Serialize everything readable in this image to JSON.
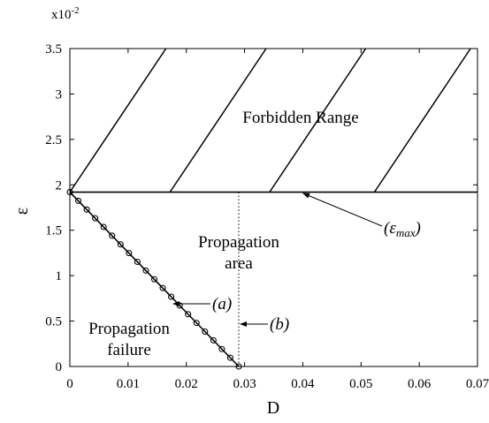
{
  "chart_data": {
    "type": "line",
    "xlabel": "D",
    "ylabel": "ε",
    "y_multiplier_label": "x10",
    "y_multiplier_exponent": "-2",
    "xlim": [
      0,
      0.07
    ],
    "ylim": [
      0,
      3.5
    ],
    "x_ticks": [
      {
        "value": 0,
        "label": "0"
      },
      {
        "value": 0.01,
        "label": "0.01"
      },
      {
        "value": 0.02,
        "label": "0.02"
      },
      {
        "value": 0.03,
        "label": "0.03"
      },
      {
        "value": 0.04,
        "label": "0.04"
      },
      {
        "value": 0.05,
        "label": "0.05"
      },
      {
        "value": 0.06,
        "label": "0.06"
      },
      {
        "value": 0.07,
        "label": "0.07"
      }
    ],
    "y_ticks": [
      {
        "value": 0,
        "label": "0"
      },
      {
        "value": 0.5,
        "label": "0.5"
      },
      {
        "value": 1,
        "label": "1"
      },
      {
        "value": 1.5,
        "label": "1.5"
      },
      {
        "value": 2,
        "label": "2"
      },
      {
        "value": 2.5,
        "label": "2.5"
      },
      {
        "value": 3,
        "label": "3"
      },
      {
        "value": 3.5,
        "label": "3.5"
      }
    ],
    "grid": false,
    "epsilon_max": 1.92,
    "threshold_D": 0.029,
    "series": [
      {
        "marker": "circle",
        "x": [
          0,
          0.00145,
          0.0029,
          0.00435,
          0.0058,
          0.00725,
          0.0087,
          0.01015,
          0.0116,
          0.01305,
          0.0145,
          0.01595,
          0.0174,
          0.01885,
          0.0203,
          0.02175,
          0.0232,
          0.02465,
          0.0261,
          0.02755,
          0.029
        ],
        "y": [
          1.92,
          1.824,
          1.728,
          1.632,
          1.536,
          1.44,
          1.344,
          1.248,
          1.152,
          1.056,
          0.96,
          0.864,
          0.768,
          0.672,
          0.576,
          0.48,
          0.384,
          0.288,
          0.192,
          0.096,
          0
        ]
      }
    ],
    "hatch_lines": [
      {
        "x": [
          0,
          0.0165
        ],
        "y": [
          1.92,
          3.5
        ]
      },
      {
        "x": [
          0.0172,
          0.0337
        ],
        "y": [
          1.92,
          3.5
        ]
      },
      {
        "x": [
          0.0343,
          0.0508
        ],
        "y": [
          1.92,
          3.5
        ]
      },
      {
        "x": [
          0.0523,
          0.0688
        ],
        "y": [
          1.92,
          3.5
        ]
      }
    ],
    "annotations": {
      "forbidden": "Forbidden Range",
      "propagation_line1": "Propagation",
      "propagation_line2": "area",
      "failure_line1": "Propagation",
      "failure_line2": "failure",
      "label_a": "(a)",
      "label_b": "(b)",
      "emax_open": "(",
      "emax_symbol": "ε",
      "emax_sub": "max",
      "emax_close": ")"
    },
    "colors": {
      "line": "#000000",
      "background": "#ffffff"
    }
  }
}
